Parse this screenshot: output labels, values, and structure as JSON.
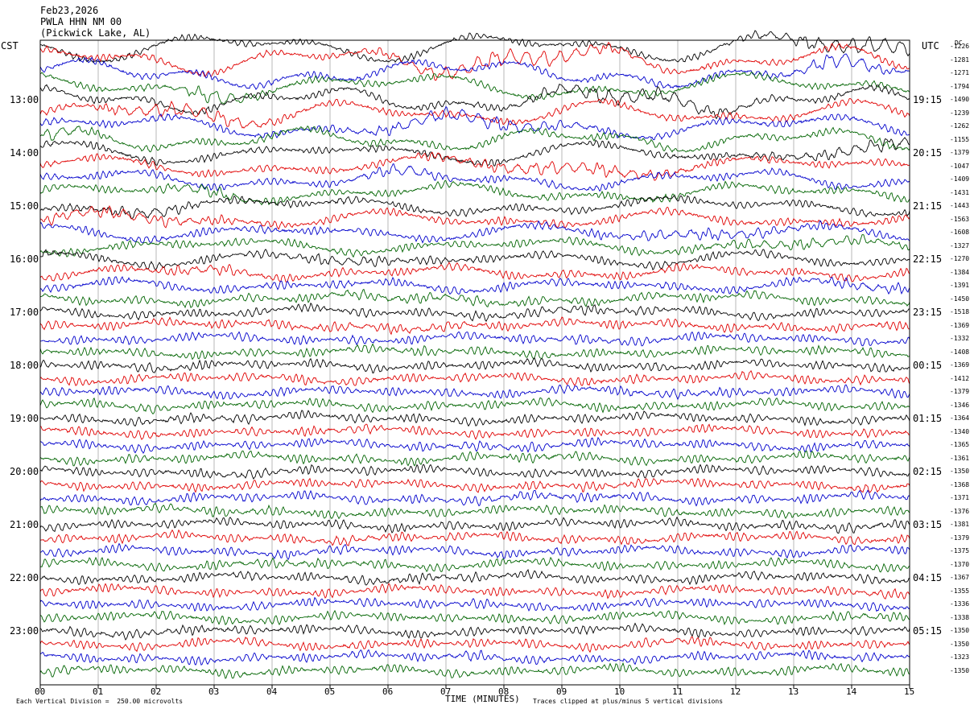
{
  "chart_data": {
    "type": "line",
    "title": [
      "Feb23,2026",
      "PWLA HHN NM 00",
      "(Pickwick Lake, AL)"
    ],
    "left_tz": "CST",
    "right_tz": "UTC",
    "dc_header": "DC",
    "xlabel": "TIME (MINUTES)",
    "x_ticks": [
      "00",
      "01",
      "02",
      "03",
      "04",
      "05",
      "06",
      "07",
      "08",
      "09",
      "10",
      "11",
      "12",
      "13",
      "14",
      "15"
    ],
    "xlim": [
      0,
      15
    ],
    "left_hour_labels": [
      "13:00",
      "14:00",
      "15:00",
      "16:00",
      "17:00",
      "18:00",
      "19:00",
      "20:00",
      "21:00",
      "22:00",
      "23:00"
    ],
    "right_hour_labels": [
      "19:15",
      "20:15",
      "21:15",
      "22:15",
      "23:15",
      "00:15",
      "01:15",
      "02:15",
      "03:15",
      "04:15",
      "05:15"
    ],
    "dc_offsets": [
      "-1226",
      "-1281",
      "-1271",
      "-1794",
      "-1490",
      "-1239",
      "-1262",
      "-1155",
      "-1379",
      "-1047",
      "-1409",
      "-1431",
      "-1443",
      "-1563",
      "-1608",
      "-1327",
      "-1270",
      "-1384",
      "-1391",
      "-1450",
      "-1518",
      "-1369",
      "-1332",
      "-1408",
      "-1369",
      "-1412",
      "-1379",
      "-1346",
      "-1364",
      "-1340",
      "-1365",
      "-1361",
      "-1350",
      "-1368",
      "-1371",
      "-1376",
      "-1381",
      "-1379",
      "-1375",
      "-1370",
      "-1367",
      "-1355",
      "-1336",
      "-1338",
      "-1350",
      "-1350",
      "-1323",
      "-1350"
    ],
    "series": [
      {
        "color": "#000000"
      },
      {
        "color": "#e00000"
      },
      {
        "color": "#0000cc"
      },
      {
        "color": "#006400"
      }
    ],
    "grid": true,
    "footer_left": "Each Vertical Division =  250.00 microvolts",
    "footer_right": "Traces clipped at plus/minus 5 vertical divisions"
  }
}
